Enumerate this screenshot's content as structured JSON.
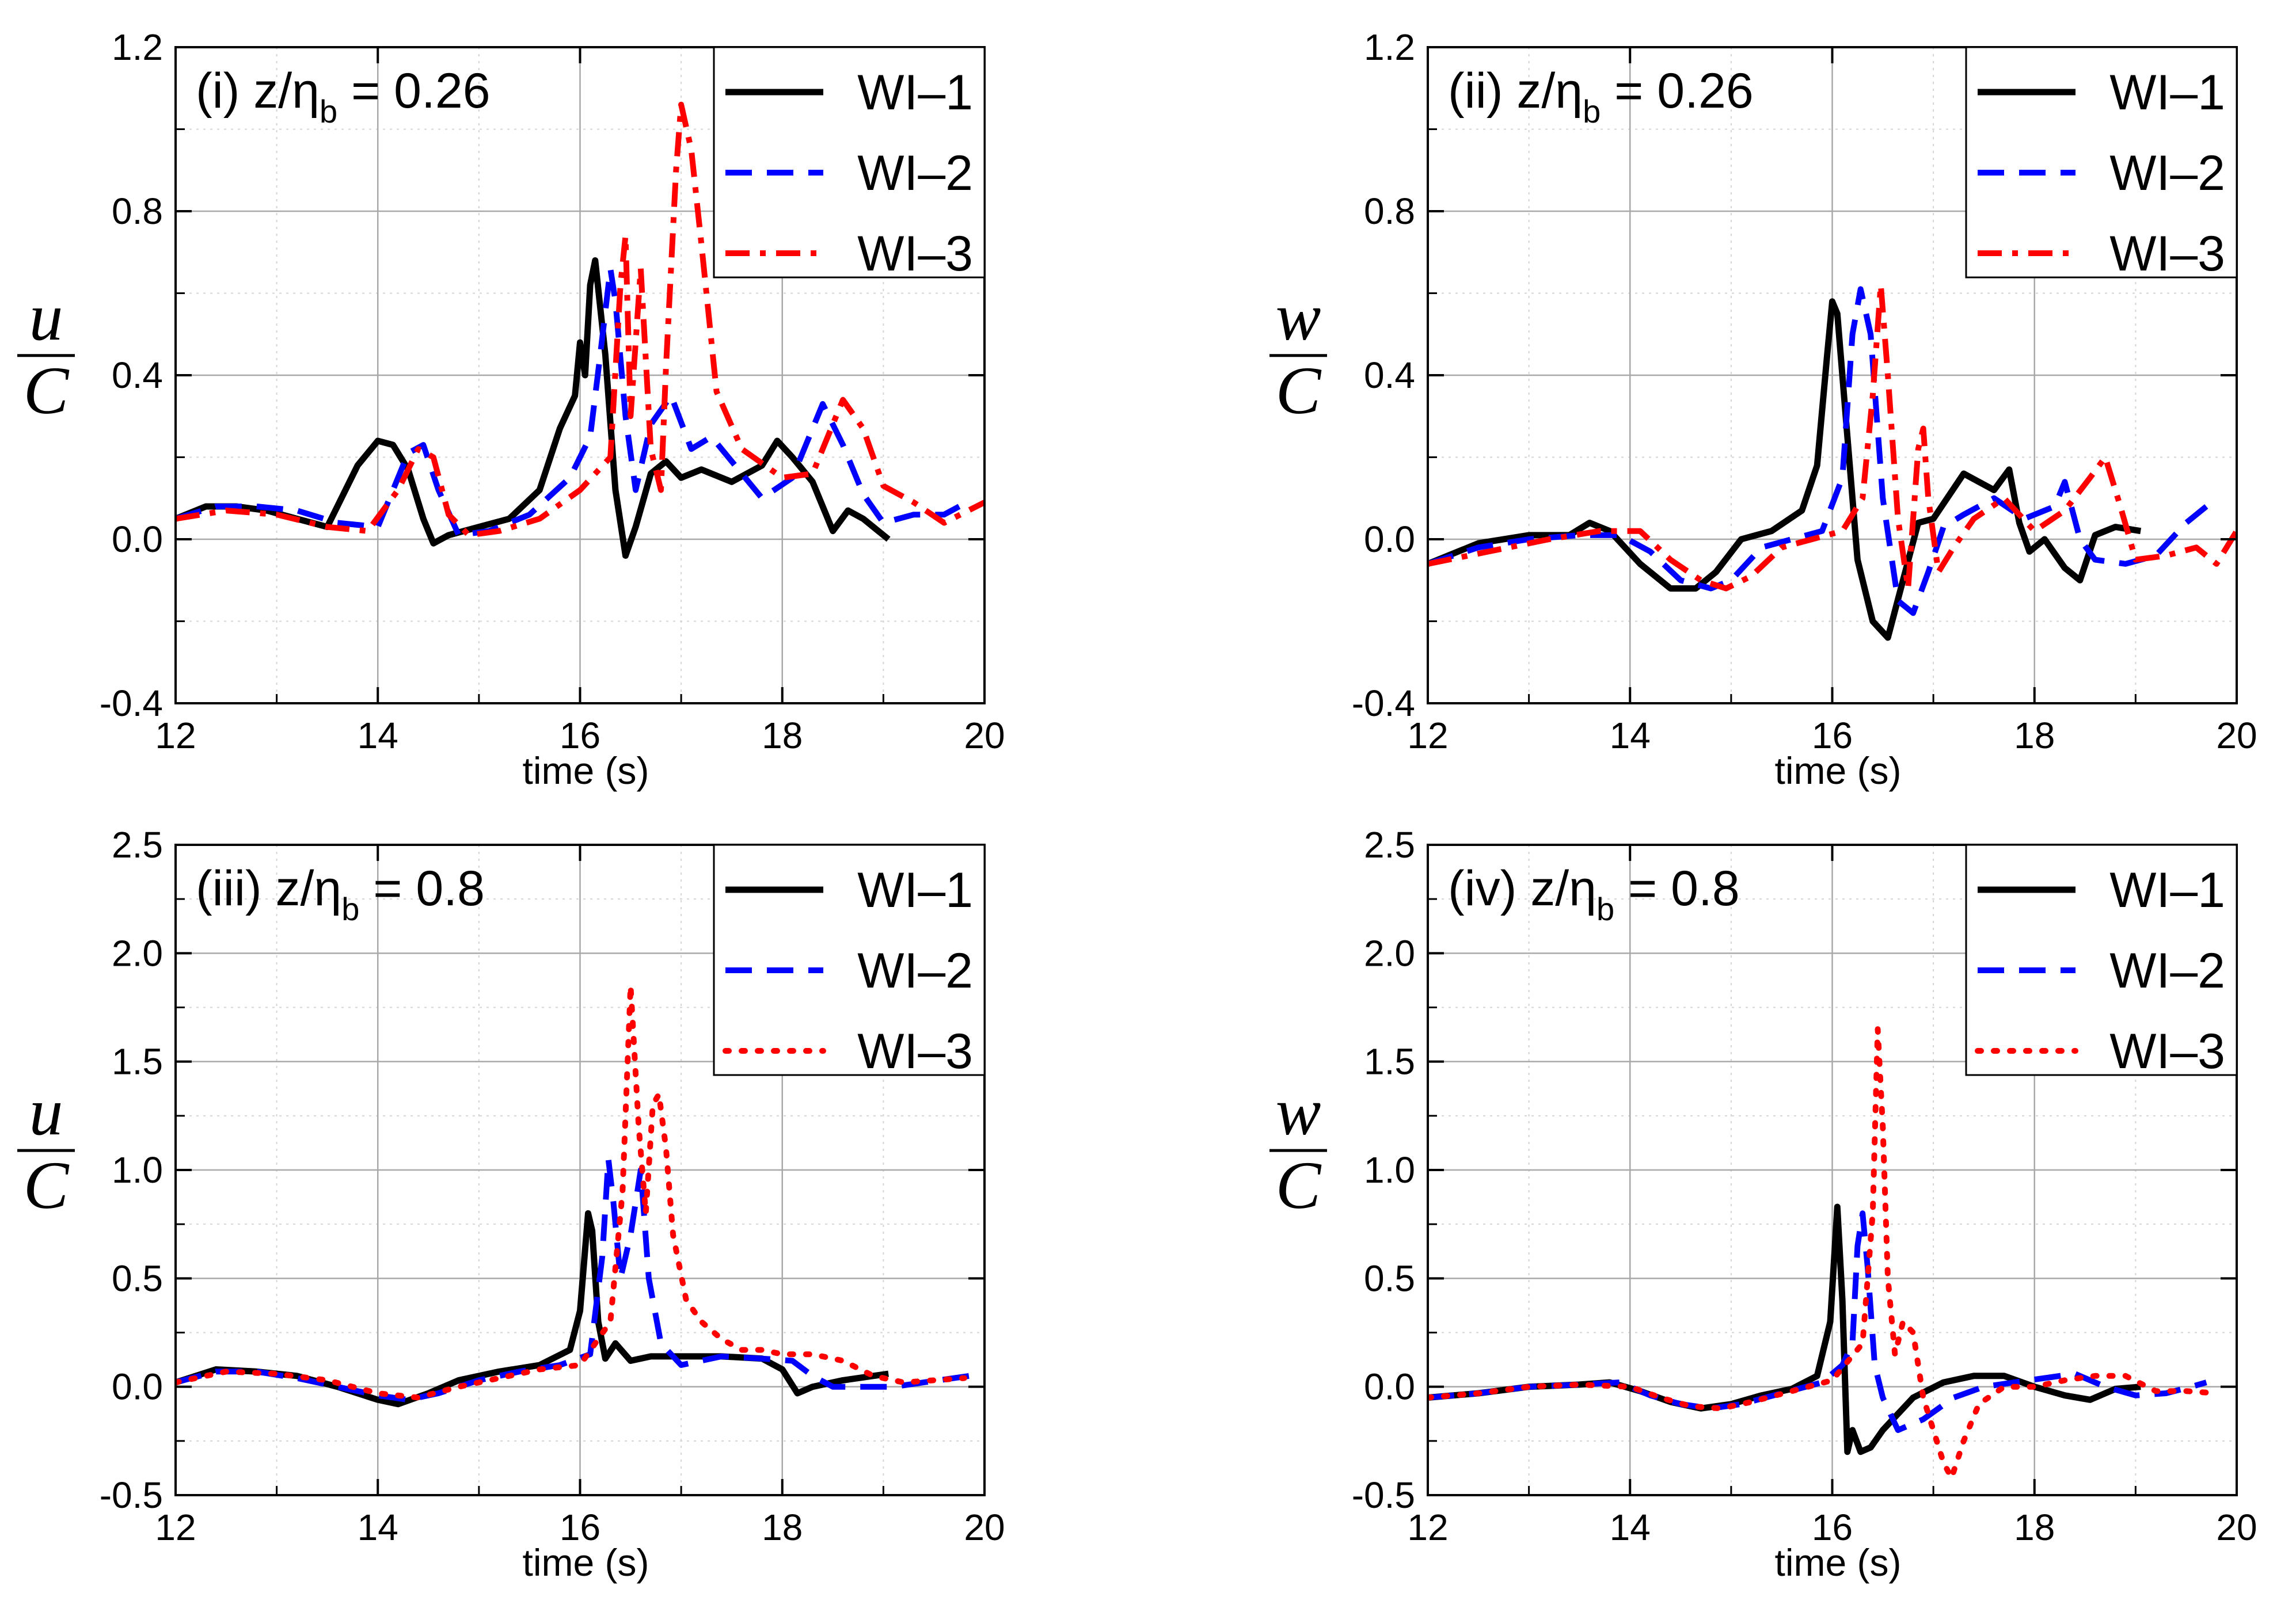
{
  "chart_data": [
    {
      "panel": "i",
      "type": "line",
      "annotation": {
        "prefix": "(i) z/η",
        "sub": "b",
        "suffix": " = 0.26"
      },
      "ylabel": {
        "num": "u",
        "den": "C"
      },
      "xlabel": "time (s)",
      "xlim": [
        12,
        20
      ],
      "ylim": [
        -0.4,
        1.2
      ],
      "xticks": [
        12,
        14,
        16,
        18,
        20
      ],
      "yticks": [
        -0.4,
        0.0,
        0.4,
        0.8,
        1.2
      ],
      "ytick_labels": [
        "-0.4",
        "0.0",
        "0.4",
        "0.8",
        "1.2"
      ],
      "grid": true,
      "legend_position": "top-right",
      "series": [
        {
          "name": "WI–1",
          "color": "#000000",
          "style": "solid",
          "x": [
            12.0,
            12.3,
            12.6,
            12.9,
            13.2,
            13.5,
            13.8,
            14.0,
            14.15,
            14.3,
            14.45,
            14.55,
            14.7,
            15.0,
            15.3,
            15.6,
            15.8,
            15.95,
            16.0,
            16.05,
            16.1,
            16.15,
            16.25,
            16.35,
            16.45,
            16.55,
            16.7,
            16.85,
            17.0,
            17.2,
            17.5,
            17.8,
            17.95,
            18.1,
            18.3,
            18.5,
            18.65,
            18.8,
            19.05
          ],
          "y": [
            0.05,
            0.08,
            0.08,
            0.07,
            0.05,
            0.03,
            0.18,
            0.24,
            0.23,
            0.17,
            0.05,
            -0.01,
            0.01,
            0.03,
            0.05,
            0.12,
            0.27,
            0.35,
            0.48,
            0.4,
            0.62,
            0.68,
            0.45,
            0.12,
            -0.04,
            0.03,
            0.16,
            0.19,
            0.15,
            0.17,
            0.14,
            0.18,
            0.24,
            0.2,
            0.14,
            0.02,
            0.07,
            0.05,
            0.0
          ]
        },
        {
          "name": "WI–2",
          "color": "#0000ff",
          "style": "dashed",
          "x": [
            12.0,
            12.4,
            12.8,
            13.2,
            13.6,
            14.0,
            14.3,
            14.45,
            14.6,
            14.8,
            15.1,
            15.5,
            15.9,
            16.1,
            16.2,
            16.3,
            16.35,
            16.45,
            16.55,
            16.7,
            16.9,
            17.1,
            17.3,
            17.5,
            17.8,
            18.1,
            18.4,
            18.6,
            18.8,
            19.0,
            19.3,
            19.6,
            19.75
          ],
          "y": [
            0.05,
            0.08,
            0.08,
            0.07,
            0.04,
            0.03,
            0.21,
            0.23,
            0.12,
            0.01,
            0.02,
            0.06,
            0.15,
            0.25,
            0.45,
            0.66,
            0.58,
            0.3,
            0.12,
            0.28,
            0.35,
            0.22,
            0.25,
            0.19,
            0.1,
            0.15,
            0.33,
            0.23,
            0.11,
            0.04,
            0.06,
            0.06,
            0.08
          ]
        },
        {
          "name": "WI–3",
          "color": "#ff0000",
          "style": "dashdot",
          "x": [
            12.0,
            12.5,
            13.0,
            13.5,
            13.9,
            14.2,
            14.4,
            14.55,
            14.7,
            14.9,
            15.2,
            15.6,
            16.0,
            16.3,
            16.4,
            16.45,
            16.5,
            16.6,
            16.7,
            16.8,
            16.85,
            16.95,
            17.0,
            17.1,
            17.2,
            17.35,
            17.6,
            18.0,
            18.3,
            18.6,
            18.8,
            19.0,
            19.3,
            19.6,
            20.0
          ],
          "y": [
            0.05,
            0.07,
            0.06,
            0.03,
            0.02,
            0.12,
            0.22,
            0.2,
            0.06,
            0.01,
            0.02,
            0.05,
            0.12,
            0.2,
            0.62,
            0.74,
            0.3,
            0.66,
            0.22,
            0.12,
            0.42,
            0.9,
            1.06,
            0.95,
            0.72,
            0.36,
            0.22,
            0.15,
            0.16,
            0.34,
            0.27,
            0.13,
            0.09,
            0.04,
            0.09
          ]
        }
      ]
    },
    {
      "panel": "ii",
      "type": "line",
      "annotation": {
        "prefix": "(ii) z/η",
        "sub": "b",
        "suffix": " = 0.26"
      },
      "ylabel": {
        "num": "w",
        "den": "C"
      },
      "xlabel": "time (s)",
      "xlim": [
        12,
        20
      ],
      "ylim": [
        -0.4,
        1.2
      ],
      "xticks": [
        12,
        14,
        16,
        18,
        20
      ],
      "yticks": [
        -0.4,
        0.0,
        0.4,
        0.8,
        1.2
      ],
      "ytick_labels": [
        "-0.4",
        "0.0",
        "0.4",
        "0.8",
        "1.2"
      ],
      "grid": true,
      "legend_position": "top-right",
      "series": [
        {
          "name": "WI–1",
          "color": "#000000",
          "style": "solid",
          "x": [
            12.0,
            12.5,
            13.0,
            13.4,
            13.6,
            13.8,
            14.1,
            14.4,
            14.65,
            14.85,
            15.1,
            15.4,
            15.7,
            15.85,
            15.95,
            16.0,
            16.05,
            16.15,
            16.25,
            16.4,
            16.55,
            16.7,
            16.85,
            17.0,
            17.3,
            17.6,
            17.75,
            17.85,
            17.95,
            18.1,
            18.3,
            18.45,
            18.6,
            18.8,
            19.05
          ],
          "y": [
            -0.06,
            -0.01,
            0.01,
            0.01,
            0.04,
            0.02,
            -0.06,
            -0.12,
            -0.12,
            -0.08,
            0.0,
            0.02,
            0.07,
            0.18,
            0.45,
            0.58,
            0.55,
            0.25,
            -0.05,
            -0.2,
            -0.24,
            -0.1,
            0.04,
            0.05,
            0.16,
            0.12,
            0.17,
            0.04,
            -0.03,
            0.0,
            -0.07,
            -0.1,
            0.01,
            0.03,
            0.02
          ]
        },
        {
          "name": "WI–2",
          "color": "#0000ff",
          "style": "dashed",
          "x": [
            12.0,
            12.5,
            13.0,
            13.5,
            13.9,
            14.2,
            14.5,
            14.8,
            15.0,
            15.3,
            15.6,
            15.9,
            16.1,
            16.2,
            16.28,
            16.38,
            16.5,
            16.65,
            16.8,
            16.95,
            17.1,
            17.3,
            17.6,
            17.9,
            18.2,
            18.3,
            18.45,
            18.6,
            18.9,
            19.2,
            19.5,
            19.7
          ],
          "y": [
            -0.06,
            -0.02,
            0.0,
            0.01,
            0.01,
            -0.03,
            -0.1,
            -0.12,
            -0.1,
            -0.02,
            0.0,
            0.02,
            0.15,
            0.5,
            0.61,
            0.5,
            0.1,
            -0.15,
            -0.18,
            -0.08,
            0.03,
            0.06,
            0.1,
            0.05,
            0.08,
            0.14,
            0.0,
            -0.05,
            -0.06,
            -0.04,
            0.04,
            0.08
          ]
        },
        {
          "name": "WI–3",
          "color": "#ff0000",
          "style": "dashdot",
          "x": [
            12.0,
            12.6,
            13.2,
            13.7,
            14.1,
            14.4,
            14.7,
            14.95,
            15.2,
            15.5,
            15.8,
            16.1,
            16.3,
            16.4,
            16.48,
            16.55,
            16.65,
            16.75,
            16.85,
            16.9,
            16.95,
            17.05,
            17.2,
            17.4,
            17.7,
            18.0,
            18.3,
            18.55,
            18.7,
            18.85,
            19.0,
            19.3,
            19.6,
            19.8,
            20.0
          ],
          "y": [
            -0.06,
            -0.03,
            0.0,
            0.02,
            0.02,
            -0.05,
            -0.1,
            -0.12,
            -0.09,
            -0.02,
            0.0,
            0.02,
            0.1,
            0.35,
            0.62,
            0.4,
            0.05,
            -0.12,
            0.22,
            0.27,
            0.1,
            -0.08,
            -0.02,
            0.05,
            0.1,
            0.02,
            0.07,
            0.15,
            0.2,
            0.08,
            -0.05,
            -0.04,
            -0.02,
            -0.06,
            0.02
          ]
        }
      ]
    },
    {
      "panel": "iii",
      "type": "line",
      "annotation": {
        "prefix": "(iii) z/η",
        "sub": "b",
        "suffix": " = 0.8"
      },
      "ylabel": {
        "num": "u",
        "den": "C"
      },
      "xlabel": "time (s)",
      "xlim": [
        12,
        20
      ],
      "ylim": [
        -0.5,
        2.5
      ],
      "xticks": [
        12,
        14,
        16,
        18,
        20
      ],
      "yticks": [
        -0.5,
        0.0,
        0.5,
        1.0,
        1.5,
        2.0,
        2.5
      ],
      "ytick_labels": [
        "-0.5",
        "0.0",
        "0.5",
        "1.0",
        "1.5",
        "2.0",
        "2.5"
      ],
      "grid": true,
      "legend_position": "top-right",
      "series": [
        {
          "name": "WI–1",
          "color": "#000000",
          "style": "solid",
          "x": [
            12.0,
            12.4,
            12.8,
            13.2,
            13.6,
            14.0,
            14.2,
            14.5,
            14.8,
            15.2,
            15.6,
            15.9,
            16.0,
            16.08,
            16.12,
            16.18,
            16.25,
            16.35,
            16.5,
            16.7,
            17.0,
            17.4,
            17.8,
            18.0,
            18.15,
            18.3,
            18.6,
            18.9,
            19.05
          ],
          "y": [
            0.02,
            0.08,
            0.07,
            0.05,
            0.0,
            -0.06,
            -0.08,
            -0.03,
            0.03,
            0.07,
            0.1,
            0.17,
            0.35,
            0.8,
            0.72,
            0.3,
            0.13,
            0.2,
            0.12,
            0.14,
            0.14,
            0.14,
            0.13,
            0.08,
            -0.03,
            0.0,
            0.03,
            0.05,
            0.06
          ]
        },
        {
          "name": "WI–2",
          "color": "#0000ff",
          "style": "dashed",
          "x": [
            12.0,
            12.4,
            12.8,
            13.2,
            13.6,
            14.0,
            14.3,
            14.6,
            15.0,
            15.4,
            15.8,
            16.1,
            16.22,
            16.28,
            16.33,
            16.4,
            16.5,
            16.6,
            16.68,
            16.8,
            17.0,
            17.4,
            17.8,
            18.1,
            18.3,
            18.5,
            18.8,
            19.1,
            19.4,
            19.7,
            19.85
          ],
          "y": [
            0.02,
            0.07,
            0.07,
            0.04,
            0.0,
            -0.04,
            -0.06,
            -0.03,
            0.03,
            0.07,
            0.1,
            0.15,
            0.6,
            1.05,
            0.85,
            0.5,
            0.7,
            1.0,
            0.5,
            0.2,
            0.1,
            0.14,
            0.13,
            0.12,
            0.05,
            0.0,
            0.0,
            0.0,
            0.02,
            0.04,
            0.05
          ]
        },
        {
          "name": "WI–3",
          "color": "#ff0000",
          "style": "dotted",
          "x": [
            12.0,
            12.5,
            13.0,
            13.5,
            14.0,
            14.4,
            14.8,
            15.2,
            15.6,
            16.0,
            16.3,
            16.42,
            16.5,
            16.58,
            16.65,
            16.72,
            16.78,
            16.85,
            16.92,
            17.05,
            17.2,
            17.4,
            17.6,
            17.8,
            18.0,
            18.3,
            18.6,
            18.9,
            19.2,
            19.5,
            19.8
          ],
          "y": [
            0.02,
            0.07,
            0.06,
            0.03,
            -0.03,
            -0.05,
            0.0,
            0.04,
            0.08,
            0.1,
            0.3,
            0.9,
            1.85,
            1.2,
            0.8,
            1.3,
            1.35,
            1.1,
            0.7,
            0.4,
            0.3,
            0.22,
            0.17,
            0.17,
            0.15,
            0.15,
            0.12,
            0.05,
            0.02,
            0.03,
            0.04
          ]
        }
      ]
    },
    {
      "panel": "iv",
      "type": "line",
      "annotation": {
        "prefix": "(iv) z/η",
        "sub": "b",
        "suffix": " = 0.8"
      },
      "ylabel": {
        "num": "w",
        "den": "C"
      },
      "xlabel": "time (s)",
      "xlim": [
        12,
        20
      ],
      "ylim": [
        -0.5,
        2.5
      ],
      "xticks": [
        12,
        14,
        16,
        18,
        20
      ],
      "yticks": [
        -0.5,
        0.0,
        0.5,
        1.0,
        1.5,
        2.0,
        2.5
      ],
      "ytick_labels": [
        "-0.5",
        "0.0",
        "0.5",
        "1.0",
        "1.5",
        "2.0",
        "2.5"
      ],
      "grid": true,
      "legend_position": "top-right",
      "series": [
        {
          "name": "WI–1",
          "color": "#000000",
          "style": "solid",
          "x": [
            12.0,
            12.5,
            13.0,
            13.5,
            13.8,
            14.1,
            14.4,
            14.7,
            15.0,
            15.3,
            15.6,
            15.85,
            15.98,
            16.05,
            16.1,
            16.15,
            16.2,
            16.28,
            16.38,
            16.5,
            16.8,
            17.1,
            17.4,
            17.7,
            18.0,
            18.3,
            18.55,
            18.8,
            19.05
          ],
          "y": [
            -0.05,
            -0.03,
            0.0,
            0.01,
            0.02,
            -0.02,
            -0.07,
            -0.1,
            -0.08,
            -0.04,
            -0.01,
            0.05,
            0.3,
            0.83,
            0.4,
            -0.3,
            -0.2,
            -0.3,
            -0.28,
            -0.2,
            -0.05,
            0.02,
            0.05,
            0.05,
            0.0,
            -0.04,
            -0.06,
            -0.01,
            0.0
          ]
        },
        {
          "name": "WI–2",
          "color": "#0000ff",
          "style": "dashed",
          "x": [
            12.0,
            12.5,
            13.0,
            13.5,
            13.9,
            14.2,
            14.5,
            14.8,
            15.1,
            15.5,
            15.9,
            16.1,
            16.2,
            16.25,
            16.3,
            16.35,
            16.42,
            16.5,
            16.65,
            16.9,
            17.2,
            17.5,
            17.8,
            18.1,
            18.4,
            18.7,
            19.0,
            19.3,
            19.55,
            19.7
          ],
          "y": [
            -0.05,
            -0.03,
            0.0,
            0.01,
            0.02,
            -0.04,
            -0.08,
            -0.1,
            -0.08,
            -0.03,
            0.02,
            0.1,
            0.2,
            0.65,
            0.8,
            0.55,
            0.1,
            -0.05,
            -0.2,
            -0.15,
            -0.05,
            0.0,
            0.02,
            0.04,
            0.06,
            0.0,
            -0.04,
            -0.03,
            0.0,
            0.02
          ]
        },
        {
          "name": "WI–3",
          "color": "#ff0000",
          "style": "dotted",
          "x": [
            12.0,
            12.5,
            13.0,
            13.5,
            14.0,
            14.3,
            14.6,
            14.9,
            15.2,
            15.6,
            16.0,
            16.3,
            16.4,
            16.45,
            16.5,
            16.55,
            16.62,
            16.7,
            16.8,
            16.9,
            17.0,
            17.1,
            17.18,
            17.3,
            17.45,
            17.7,
            18.0,
            18.3,
            18.6,
            18.9,
            19.2,
            19.5,
            19.8
          ],
          "y": [
            -0.05,
            -0.03,
            0.0,
            0.01,
            0.0,
            -0.05,
            -0.09,
            -0.1,
            -0.07,
            -0.02,
            0.03,
            0.2,
            0.8,
            1.65,
            1.2,
            0.5,
            0.15,
            0.3,
            0.25,
            -0.05,
            -0.2,
            -0.35,
            -0.42,
            -0.25,
            -0.08,
            0.0,
            0.0,
            0.03,
            0.05,
            0.05,
            -0.02,
            -0.02,
            -0.03
          ]
        }
      ]
    }
  ]
}
